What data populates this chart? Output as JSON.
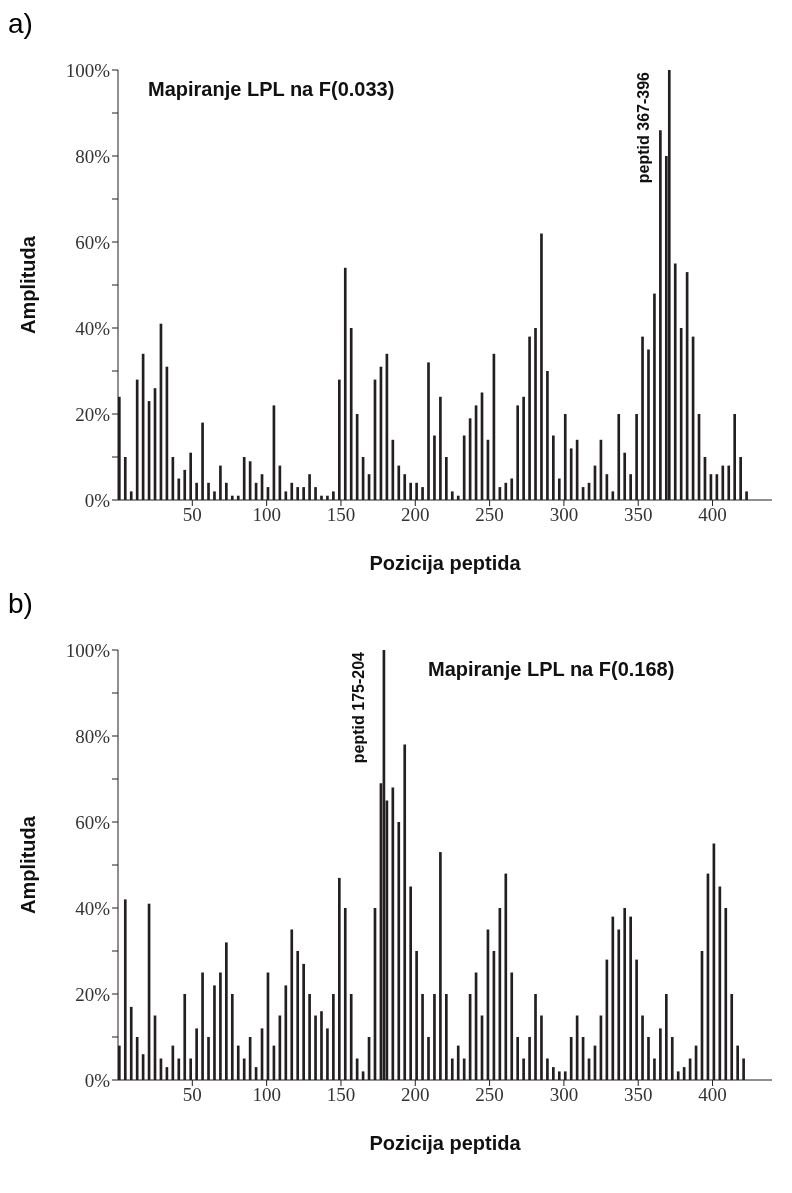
{
  "chart_data": [
    {
      "type": "bar",
      "title": "Mapiranje LPL na F(0.033)",
      "xlabel": "Pozicija peptida",
      "ylabel": "Amplituda",
      "color": "#231f20",
      "annotations": [
        "a)",
        {
          "text": "peptid 367-396",
          "x": 371,
          "y": 100
        }
      ],
      "x": [
        1,
        5,
        9,
        13,
        17,
        21,
        25,
        29,
        33,
        37,
        41,
        45,
        49,
        53,
        57,
        61,
        65,
        69,
        73,
        77,
        81,
        85,
        89,
        93,
        97,
        101,
        105,
        109,
        113,
        117,
        121,
        125,
        129,
        133,
        137,
        141,
        145,
        149,
        153,
        157,
        161,
        165,
        169,
        173,
        177,
        181,
        185,
        189,
        193,
        197,
        201,
        205,
        209,
        213,
        217,
        221,
        225,
        229,
        233,
        237,
        241,
        245,
        249,
        253,
        257,
        261,
        265,
        269,
        273,
        277,
        281,
        285,
        289,
        293,
        297,
        301,
        305,
        309,
        313,
        317,
        321,
        325,
        329,
        333,
        337,
        341,
        345,
        349,
        353,
        357,
        361,
        365,
        369,
        371,
        375,
        379,
        383,
        387,
        391,
        395,
        399,
        403,
        407,
        411,
        415,
        419,
        423
      ],
      "values": [
        24,
        10,
        2,
        28,
        34,
        23,
        26,
        41,
        31,
        10,
        5,
        7,
        11,
        4,
        18,
        4,
        2,
        8,
        4,
        1,
        1,
        10,
        9,
        4,
        6,
        3,
        22,
        8,
        2,
        4,
        3,
        3,
        6,
        3,
        1,
        1,
        2,
        28,
        54,
        40,
        20,
        10,
        6,
        28,
        31,
        34,
        14,
        8,
        6,
        4,
        4,
        3,
        32,
        15,
        24,
        10,
        2,
        1,
        15,
        19,
        22,
        25,
        14,
        34,
        3,
        4,
        5,
        22,
        24,
        38,
        40,
        62,
        30,
        15,
        5,
        20,
        12,
        14,
        3,
        4,
        8,
        14,
        6,
        2,
        20,
        11,
        6,
        20,
        38,
        35,
        48,
        86,
        80,
        100,
        55,
        40,
        53,
        38,
        20,
        10,
        6,
        6,
        8,
        8,
        20,
        10,
        2
      ],
      "xlim": [
        0,
        440
      ],
      "xticks": [
        50,
        100,
        150,
        200,
        250,
        300,
        350,
        400
      ],
      "ylim": [
        0,
        100
      ],
      "yticks": [
        {
          "value": 0,
          "label": "0%"
        },
        {
          "value": 10,
          "label": null
        },
        {
          "value": 20,
          "label": "20%"
        },
        {
          "value": 30,
          "label": null
        },
        {
          "value": 40,
          "label": "40%"
        },
        {
          "value": 50,
          "label": null
        },
        {
          "value": 60,
          "label": "60%"
        },
        {
          "value": 70,
          "label": null
        },
        {
          "value": 80,
          "label": "80%"
        },
        {
          "value": 90,
          "label": null
        },
        {
          "value": 100,
          "label": "100%"
        }
      ],
      "grid": false,
      "legend": false
    },
    {
      "type": "bar",
      "title": "Mapiranje LPL na F(0.168)",
      "xlabel": "Pozicija peptida",
      "ylabel": "Amplituda",
      "color": "#231f20",
      "annotations": [
        "b)",
        {
          "text": "peptid 175-204",
          "x": 179,
          "y": 100
        }
      ],
      "x": [
        1,
        5,
        9,
        13,
        17,
        21,
        25,
        29,
        33,
        37,
        41,
        45,
        49,
        53,
        57,
        61,
        65,
        69,
        73,
        77,
        81,
        85,
        89,
        93,
        97,
        101,
        105,
        109,
        113,
        117,
        121,
        125,
        129,
        133,
        137,
        141,
        145,
        149,
        153,
        157,
        161,
        165,
        169,
        173,
        177,
        179,
        181,
        185,
        189,
        193,
        197,
        201,
        205,
        209,
        213,
        217,
        221,
        225,
        229,
        233,
        237,
        241,
        245,
        249,
        253,
        257,
        261,
        265,
        269,
        273,
        277,
        281,
        285,
        289,
        293,
        297,
        301,
        305,
        309,
        313,
        317,
        321,
        325,
        329,
        333,
        337,
        341,
        345,
        349,
        353,
        357,
        361,
        365,
        369,
        373,
        377,
        381,
        385,
        389,
        393,
        397,
        401,
        405,
        409,
        413,
        417,
        421
      ],
      "values": [
        8,
        42,
        17,
        10,
        6,
        41,
        15,
        5,
        3,
        8,
        5,
        20,
        5,
        12,
        25,
        10,
        22,
        25,
        32,
        20,
        8,
        5,
        10,
        3,
        12,
        25,
        8,
        15,
        22,
        35,
        30,
        27,
        20,
        15,
        16,
        12,
        20,
        47,
        40,
        20,
        5,
        2,
        10,
        40,
        69,
        100,
        65,
        68,
        60,
        78,
        45,
        30,
        20,
        10,
        20,
        53,
        20,
        5,
        8,
        5,
        20,
        25,
        15,
        35,
        30,
        40,
        48,
        25,
        10,
        5,
        10,
        20,
        15,
        5,
        3,
        2,
        2,
        10,
        15,
        10,
        5,
        8,
        15,
        28,
        38,
        35,
        40,
        38,
        28,
        15,
        10,
        5,
        12,
        20,
        10,
        2,
        3,
        5,
        8,
        30,
        48,
        55,
        45,
        40,
        20,
        8,
        5
      ],
      "xlim": [
        0,
        440
      ],
      "xticks": [
        50,
        100,
        150,
        200,
        250,
        300,
        350,
        400
      ],
      "ylim": [
        0,
        100
      ],
      "yticks": [
        {
          "value": 0,
          "label": "0%"
        },
        {
          "value": 10,
          "label": null
        },
        {
          "value": 20,
          "label": "20%"
        },
        {
          "value": 30,
          "label": null
        },
        {
          "value": 40,
          "label": "40%"
        },
        {
          "value": 50,
          "label": null
        },
        {
          "value": 60,
          "label": "60%"
        },
        {
          "value": 70,
          "label": null
        },
        {
          "value": 80,
          "label": "80%"
        },
        {
          "value": 90,
          "label": null
        },
        {
          "value": 100,
          "label": "100%"
        }
      ],
      "grid": false,
      "legend": false
    }
  ]
}
